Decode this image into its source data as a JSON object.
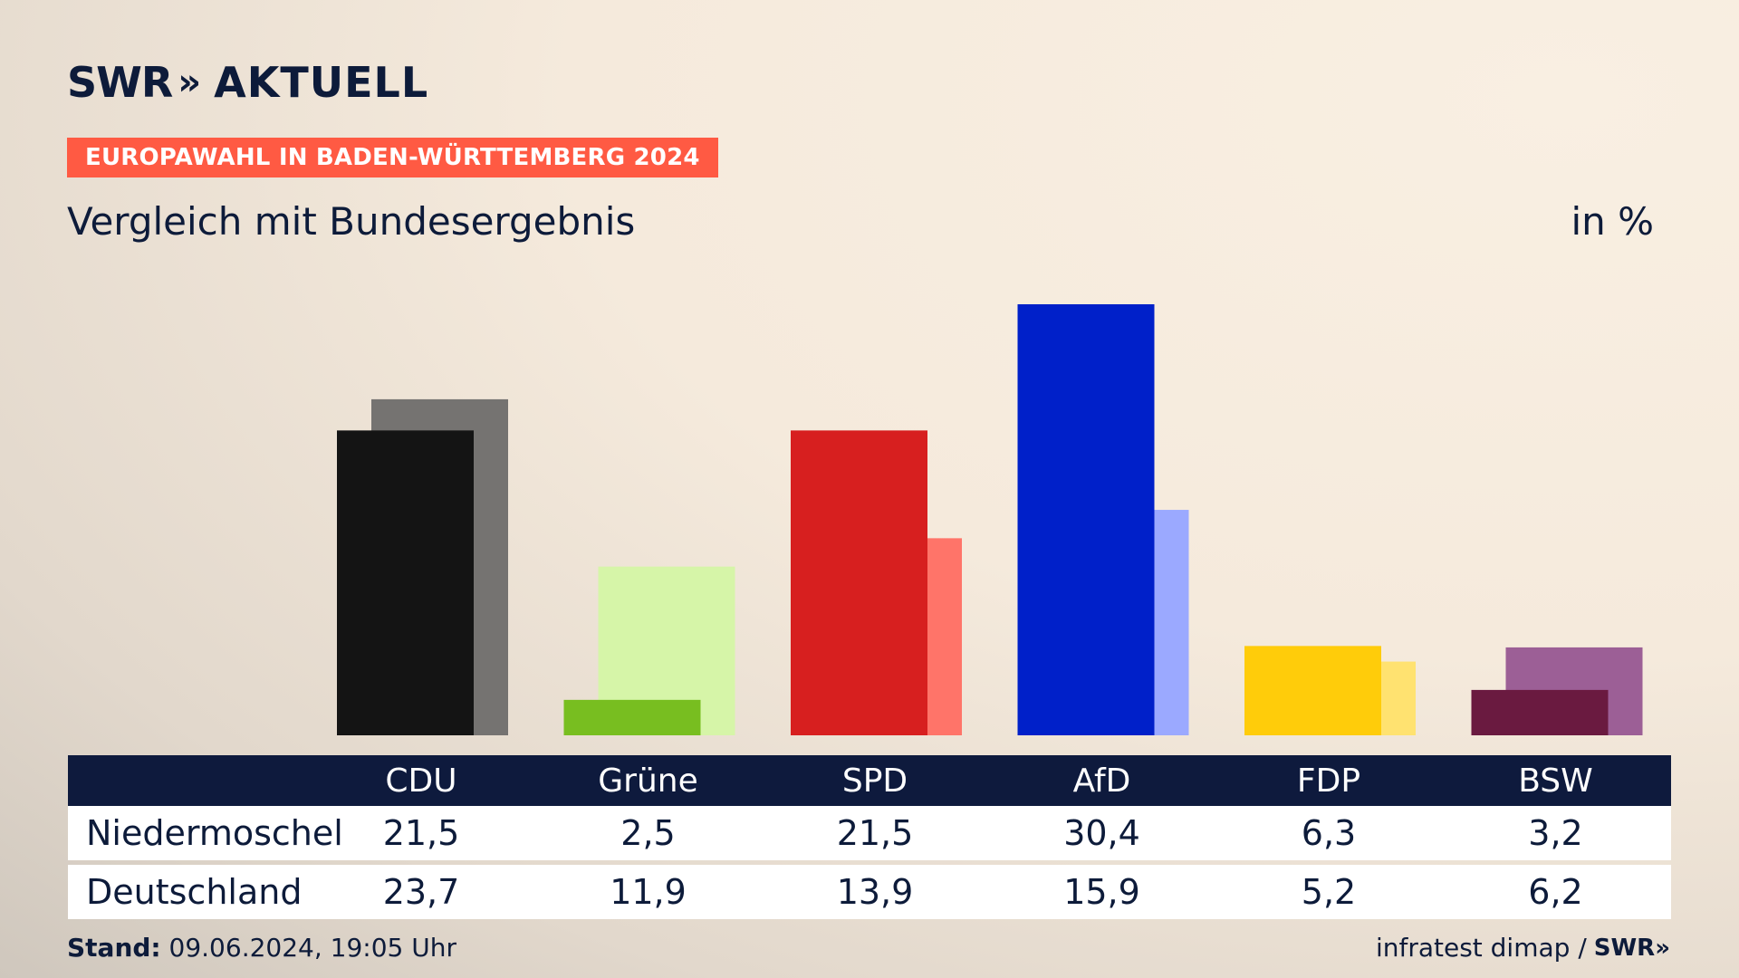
{
  "header": {
    "logo": "SWR",
    "logo_arrows": "»",
    "logo_suffix": "AKTUELL",
    "badge": "EUROPAWAHL IN BADEN-WÜRTTEMBERG 2024",
    "subtitle": "Vergleich mit Bundesergebnis",
    "unit": "in %"
  },
  "colors": {
    "navy": "#0e1a3d",
    "badge": "#ff5a43"
  },
  "chart_data": {
    "type": "bar",
    "categories": [
      "CDU",
      "Grüne",
      "SPD",
      "AfD",
      "FDP",
      "BSW"
    ],
    "series": [
      {
        "name": "Niedermoschel",
        "values": [
          21.5,
          2.5,
          21.5,
          30.4,
          6.3,
          3.2
        ],
        "colors": [
          "#141414",
          "#78be20",
          "#d71f1f",
          "#0020c9",
          "#ffcc0a",
          "#6a1a40"
        ]
      },
      {
        "name": "Deutschland",
        "values": [
          23.7,
          11.9,
          13.9,
          15.9,
          5.2,
          6.2
        ],
        "colors": [
          "#757371",
          "#d6f5a8",
          "#ff7469",
          "#9ba9ff",
          "#ffe270",
          "#9c5f96"
        ]
      }
    ],
    "ylim": [
      0,
      30.4
    ],
    "table": {
      "headers": [
        "CDU",
        "Grüne",
        "SPD",
        "AfD",
        "FDP",
        "BSW"
      ],
      "rows": [
        {
          "label": "Niedermoschel",
          "values": [
            "21,5",
            "2,5",
            "21,5",
            "30,4",
            "6,3",
            "3,2"
          ]
        },
        {
          "label": "Deutschland",
          "values": [
            "23,7",
            "11,9",
            "13,9",
            "15,9",
            "5,2",
            "6,2"
          ]
        }
      ]
    }
  },
  "footer": {
    "stand_label": "Stand:",
    "stand_value": "09.06.2024, 19:05 Uhr",
    "source": "infratest dimap /",
    "source_logo": "SWR»"
  }
}
